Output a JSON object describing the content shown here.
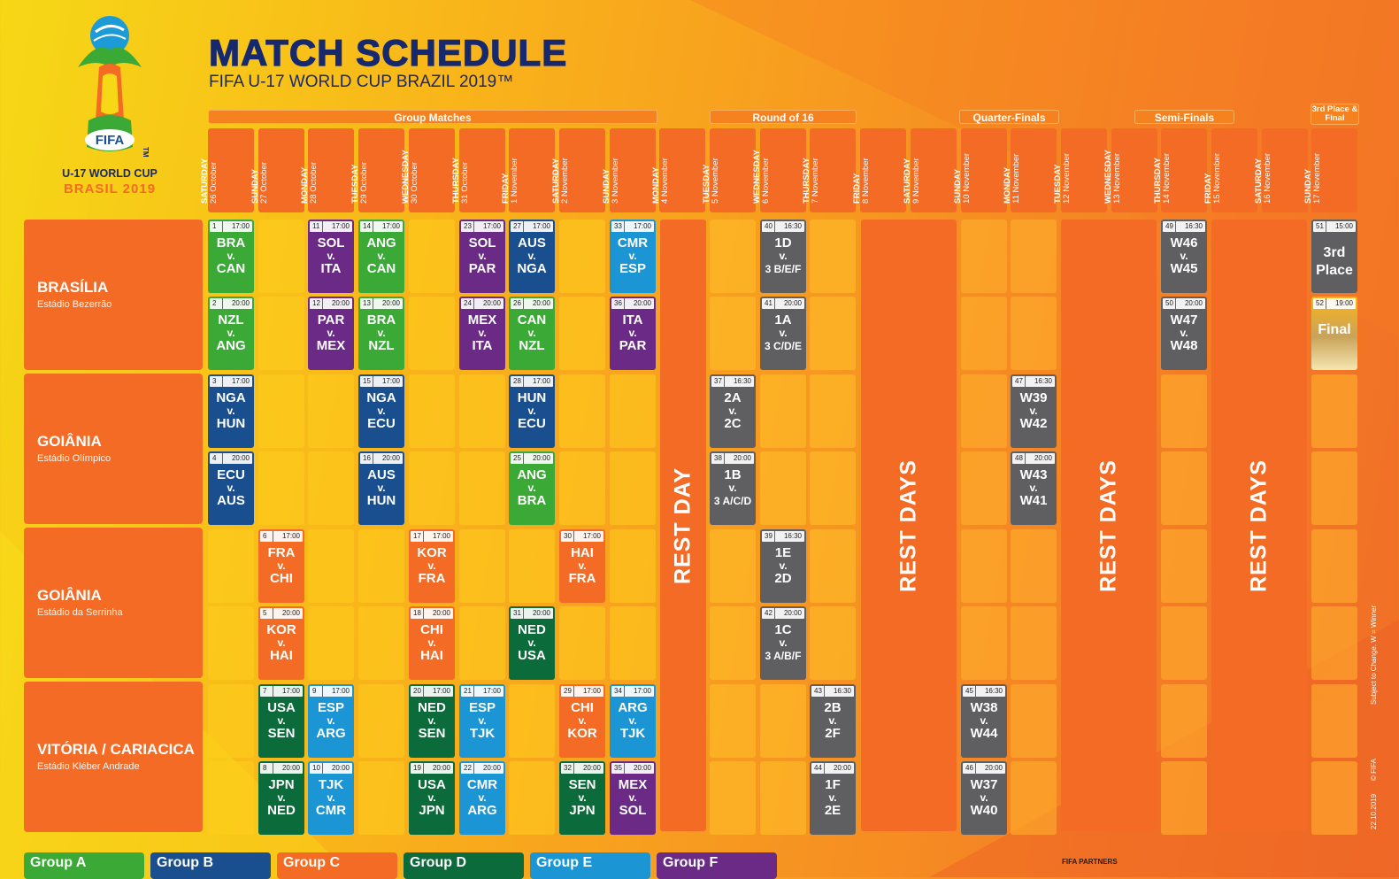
{
  "header": {
    "title": "MATCH SCHEDULE",
    "subtitle": "FIFA U-17 WORLD CUP BRAZIL 2019™"
  },
  "logo": {
    "fifa": "FIFA",
    "tm": "TM",
    "line1": "U-17 WORLD CUP",
    "line2": "BRASIL 2019"
  },
  "phases": [
    "Group Matches",
    "Round of 16",
    "Quarter-Finals",
    "Semi-Finals",
    "3rd Place & Final"
  ],
  "days": [
    {
      "weekday": "SATURDAY",
      "date": "26 October"
    },
    {
      "weekday": "SUNDAY",
      "date": "27 October"
    },
    {
      "weekday": "MONDAY",
      "date": "28 October"
    },
    {
      "weekday": "TUESDAY",
      "date": "29 October"
    },
    {
      "weekday": "WEDNESDAY",
      "date": "30 October"
    },
    {
      "weekday": "THURSDAY",
      "date": "31 October"
    },
    {
      "weekday": "FRIDAY",
      "date": "1 November"
    },
    {
      "weekday": "SATURDAY",
      "date": "2 November"
    },
    {
      "weekday": "SUNDAY",
      "date": "3 November"
    },
    {
      "weekday": "MONDAY",
      "date": "4 November"
    },
    {
      "weekday": "TUESDAY",
      "date": "5 November"
    },
    {
      "weekday": "WEDNESDAY",
      "date": "6 November"
    },
    {
      "weekday": "THURSDAY",
      "date": "7 November"
    },
    {
      "weekday": "FRIDAY",
      "date": "8 November"
    },
    {
      "weekday": "SATURDAY",
      "date": "9 November"
    },
    {
      "weekday": "SUNDAY",
      "date": "10 November"
    },
    {
      "weekday": "MONDAY",
      "date": "11 November"
    },
    {
      "weekday": "TUESDAY",
      "date": "12 November"
    },
    {
      "weekday": "WEDNESDAY",
      "date": "13 November"
    },
    {
      "weekday": "THURSDAY",
      "date": "14 November"
    },
    {
      "weekday": "FRIDAY",
      "date": "15 November"
    },
    {
      "weekday": "SATURDAY",
      "date": "16 November"
    },
    {
      "weekday": "SUNDAY",
      "date": "17 November"
    }
  ],
  "venues": [
    {
      "city": "BRASÍLIA",
      "stadium": "Estádio Bezerrão"
    },
    {
      "city": "GOIÂNIA",
      "stadium": "Estádio Olímpico"
    },
    {
      "city": "GOIÂNIA",
      "stadium": "Estádio da Serrinha"
    },
    {
      "city": "VITÓRIA / CARIACICA",
      "stadium": "Estádio Kléber Andrade"
    }
  ],
  "rest": {
    "day": "REST DAY",
    "days": "REST DAYS"
  },
  "colors": {
    "A": "#3aa935",
    "B": "#1a4f8f",
    "C": "#f36b24",
    "D": "#0c6b3a",
    "E": "#1b95d4",
    "F": "#6a2a86",
    "KO": "#5f5f62",
    "final": "#b79a56"
  },
  "matches": [
    {
      "num": "1",
      "time": "17:00",
      "day": 0,
      "row": 0,
      "group": "A",
      "home": "BRA",
      "away": "CAN"
    },
    {
      "num": "2",
      "time": "20:00",
      "day": 0,
      "row": 1,
      "group": "A",
      "home": "NZL",
      "away": "ANG"
    },
    {
      "num": "3",
      "time": "17:00",
      "day": 0,
      "row": 2,
      "group": "B",
      "home": "NGA",
      "away": "HUN"
    },
    {
      "num": "4",
      "time": "20:00",
      "day": 0,
      "row": 3,
      "group": "B",
      "home": "ECU",
      "away": "AUS"
    },
    {
      "num": "6",
      "time": "17:00",
      "day": 1,
      "row": 4,
      "group": "C",
      "home": "FRA",
      "away": "CHI"
    },
    {
      "num": "5",
      "time": "20:00",
      "day": 1,
      "row": 5,
      "group": "C",
      "home": "KOR",
      "away": "HAI"
    },
    {
      "num": "7",
      "time": "17:00",
      "day": 1,
      "row": 6,
      "group": "D",
      "home": "USA",
      "away": "SEN"
    },
    {
      "num": "8",
      "time": "20:00",
      "day": 1,
      "row": 7,
      "group": "D",
      "home": "JPN",
      "away": "NED"
    },
    {
      "num": "11",
      "time": "17:00",
      "day": 2,
      "row": 0,
      "group": "F",
      "home": "SOL",
      "away": "ITA"
    },
    {
      "num": "12",
      "time": "20:00",
      "day": 2,
      "row": 1,
      "group": "F",
      "home": "PAR",
      "away": "MEX"
    },
    {
      "num": "9",
      "time": "17:00",
      "day": 2,
      "row": 6,
      "group": "E",
      "home": "ESP",
      "away": "ARG"
    },
    {
      "num": "10",
      "time": "20:00",
      "day": 2,
      "row": 7,
      "group": "E",
      "home": "TJK",
      "away": "CMR"
    },
    {
      "num": "14",
      "time": "17:00",
      "day": 3,
      "row": 0,
      "group": "A",
      "home": "ANG",
      "away": "CAN"
    },
    {
      "num": "13",
      "time": "20:00",
      "day": 3,
      "row": 1,
      "group": "A",
      "home": "BRA",
      "away": "NZL"
    },
    {
      "num": "15",
      "time": "17:00",
      "day": 3,
      "row": 2,
      "group": "B",
      "home": "NGA",
      "away": "ECU"
    },
    {
      "num": "16",
      "time": "20:00",
      "day": 3,
      "row": 3,
      "group": "B",
      "home": "AUS",
      "away": "HUN"
    },
    {
      "num": "17",
      "time": "17:00",
      "day": 4,
      "row": 4,
      "group": "C",
      "home": "KOR",
      "away": "FRA"
    },
    {
      "num": "18",
      "time": "20:00",
      "day": 4,
      "row": 5,
      "group": "C",
      "home": "CHI",
      "away": "HAI"
    },
    {
      "num": "20",
      "time": "17:00",
      "day": 4,
      "row": 6,
      "group": "D",
      "home": "NED",
      "away": "SEN"
    },
    {
      "num": "19",
      "time": "20:00",
      "day": 4,
      "row": 7,
      "group": "D",
      "home": "USA",
      "away": "JPN"
    },
    {
      "num": "23",
      "time": "17:00",
      "day": 5,
      "row": 0,
      "group": "F",
      "home": "SOL",
      "away": "PAR"
    },
    {
      "num": "24",
      "time": "20:00",
      "day": 5,
      "row": 1,
      "group": "F",
      "home": "MEX",
      "away": "ITA"
    },
    {
      "num": "21",
      "time": "17:00",
      "day": 5,
      "row": 6,
      "group": "E",
      "home": "ESP",
      "away": "TJK"
    },
    {
      "num": "22",
      "time": "20:00",
      "day": 5,
      "row": 7,
      "group": "E",
      "home": "CMR",
      "away": "ARG"
    },
    {
      "num": "27",
      "time": "17:00",
      "day": 6,
      "row": 0,
      "group": "B",
      "home": "AUS",
      "away": "NGA"
    },
    {
      "num": "26",
      "time": "20:00",
      "day": 6,
      "row": 1,
      "group": "A",
      "home": "CAN",
      "away": "NZL"
    },
    {
      "num": "28",
      "time": "17:00",
      "day": 6,
      "row": 2,
      "group": "B",
      "home": "HUN",
      "away": "ECU"
    },
    {
      "num": "25",
      "time": "20:00",
      "day": 6,
      "row": 3,
      "group": "A",
      "home": "ANG",
      "away": "BRA"
    },
    {
      "num": "31",
      "time": "20:00",
      "day": 6,
      "row": 5,
      "group": "D",
      "home": "NED",
      "away": "USA"
    },
    {
      "num": "30",
      "time": "17:00",
      "day": 7,
      "row": 4,
      "group": "C",
      "home": "HAI",
      "away": "FRA"
    },
    {
      "num": "29",
      "time": "17:00",
      "day": 7,
      "row": 6,
      "group": "C",
      "home": "CHI",
      "away": "KOR"
    },
    {
      "num": "32",
      "time": "20:00",
      "day": 7,
      "row": 7,
      "group": "D",
      "home": "SEN",
      "away": "JPN"
    },
    {
      "num": "33",
      "time": "17:00",
      "day": 8,
      "row": 0,
      "group": "E",
      "home": "CMR",
      "away": "ESP"
    },
    {
      "num": "36",
      "time": "20:00",
      "day": 8,
      "row": 1,
      "group": "F",
      "home": "ITA",
      "away": "PAR"
    },
    {
      "num": "34",
      "time": "17:00",
      "day": 8,
      "row": 6,
      "group": "E",
      "home": "ARG",
      "away": "TJK"
    },
    {
      "num": "35",
      "time": "20:00",
      "day": 8,
      "row": 7,
      "group": "F",
      "home": "MEX",
      "away": "SOL"
    },
    {
      "num": "37",
      "time": "16:30",
      "day": 10,
      "row": 2,
      "group": "KO",
      "home": "2A",
      "away": "2C"
    },
    {
      "num": "38",
      "time": "20:00",
      "day": 10,
      "row": 3,
      "group": "KO",
      "home": "1B",
      "away": "3 A/C/D"
    },
    {
      "num": "40",
      "time": "16:30",
      "day": 11,
      "row": 0,
      "group": "KO",
      "home": "1D",
      "away": "3 B/E/F"
    },
    {
      "num": "41",
      "time": "20:00",
      "day": 11,
      "row": 1,
      "group": "KO",
      "home": "1A",
      "away": "3 C/D/E"
    },
    {
      "num": "39",
      "time": "16:30",
      "day": 11,
      "row": 4,
      "group": "KO",
      "home": "1E",
      "away": "2D"
    },
    {
      "num": "42",
      "time": "20:00",
      "day": 11,
      "row": 5,
      "group": "KO",
      "home": "1C",
      "away": "3 A/B/F"
    },
    {
      "num": "43",
      "time": "16:30",
      "day": 12,
      "row": 6,
      "group": "KO",
      "home": "2B",
      "away": "2F"
    },
    {
      "num": "44",
      "time": "20:00",
      "day": 12,
      "row": 7,
      "group": "KO",
      "home": "1F",
      "away": "2E"
    },
    {
      "num": "45",
      "time": "16:30",
      "day": 15,
      "row": 6,
      "group": "KO",
      "home": "W38",
      "away": "W44"
    },
    {
      "num": "46",
      "time": "20:00",
      "day": 15,
      "row": 7,
      "group": "KO",
      "home": "W37",
      "away": "W40"
    },
    {
      "num": "47",
      "time": "16:30",
      "day": 16,
      "row": 2,
      "group": "KO",
      "home": "W39",
      "away": "W42"
    },
    {
      "num": "48",
      "time": "20:00",
      "day": 16,
      "row": 3,
      "group": "KO",
      "home": "W43",
      "away": "W41"
    },
    {
      "num": "49",
      "time": "16:30",
      "day": 19,
      "row": 0,
      "group": "KO",
      "home": "W46",
      "away": "W45"
    },
    {
      "num": "50",
      "time": "20:00",
      "day": 19,
      "row": 1,
      "group": "KO",
      "home": "W47",
      "away": "W48"
    },
    {
      "num": "51",
      "time": "15:00",
      "day": 22,
      "row": 0,
      "group": "KO",
      "special": "3rd Place"
    },
    {
      "num": "52",
      "time": "19:00",
      "day": 22,
      "row": 1,
      "group": "final",
      "special": "Final"
    }
  ],
  "legend": [
    "Group A",
    "Group B",
    "Group C",
    "Group D",
    "Group E",
    "Group F"
  ],
  "footer": {
    "partners": "FIFA PARTNERS",
    "note": "Subject to Change. W = Winner",
    "copyright": "© FIFA",
    "date": "22.10.2019"
  }
}
